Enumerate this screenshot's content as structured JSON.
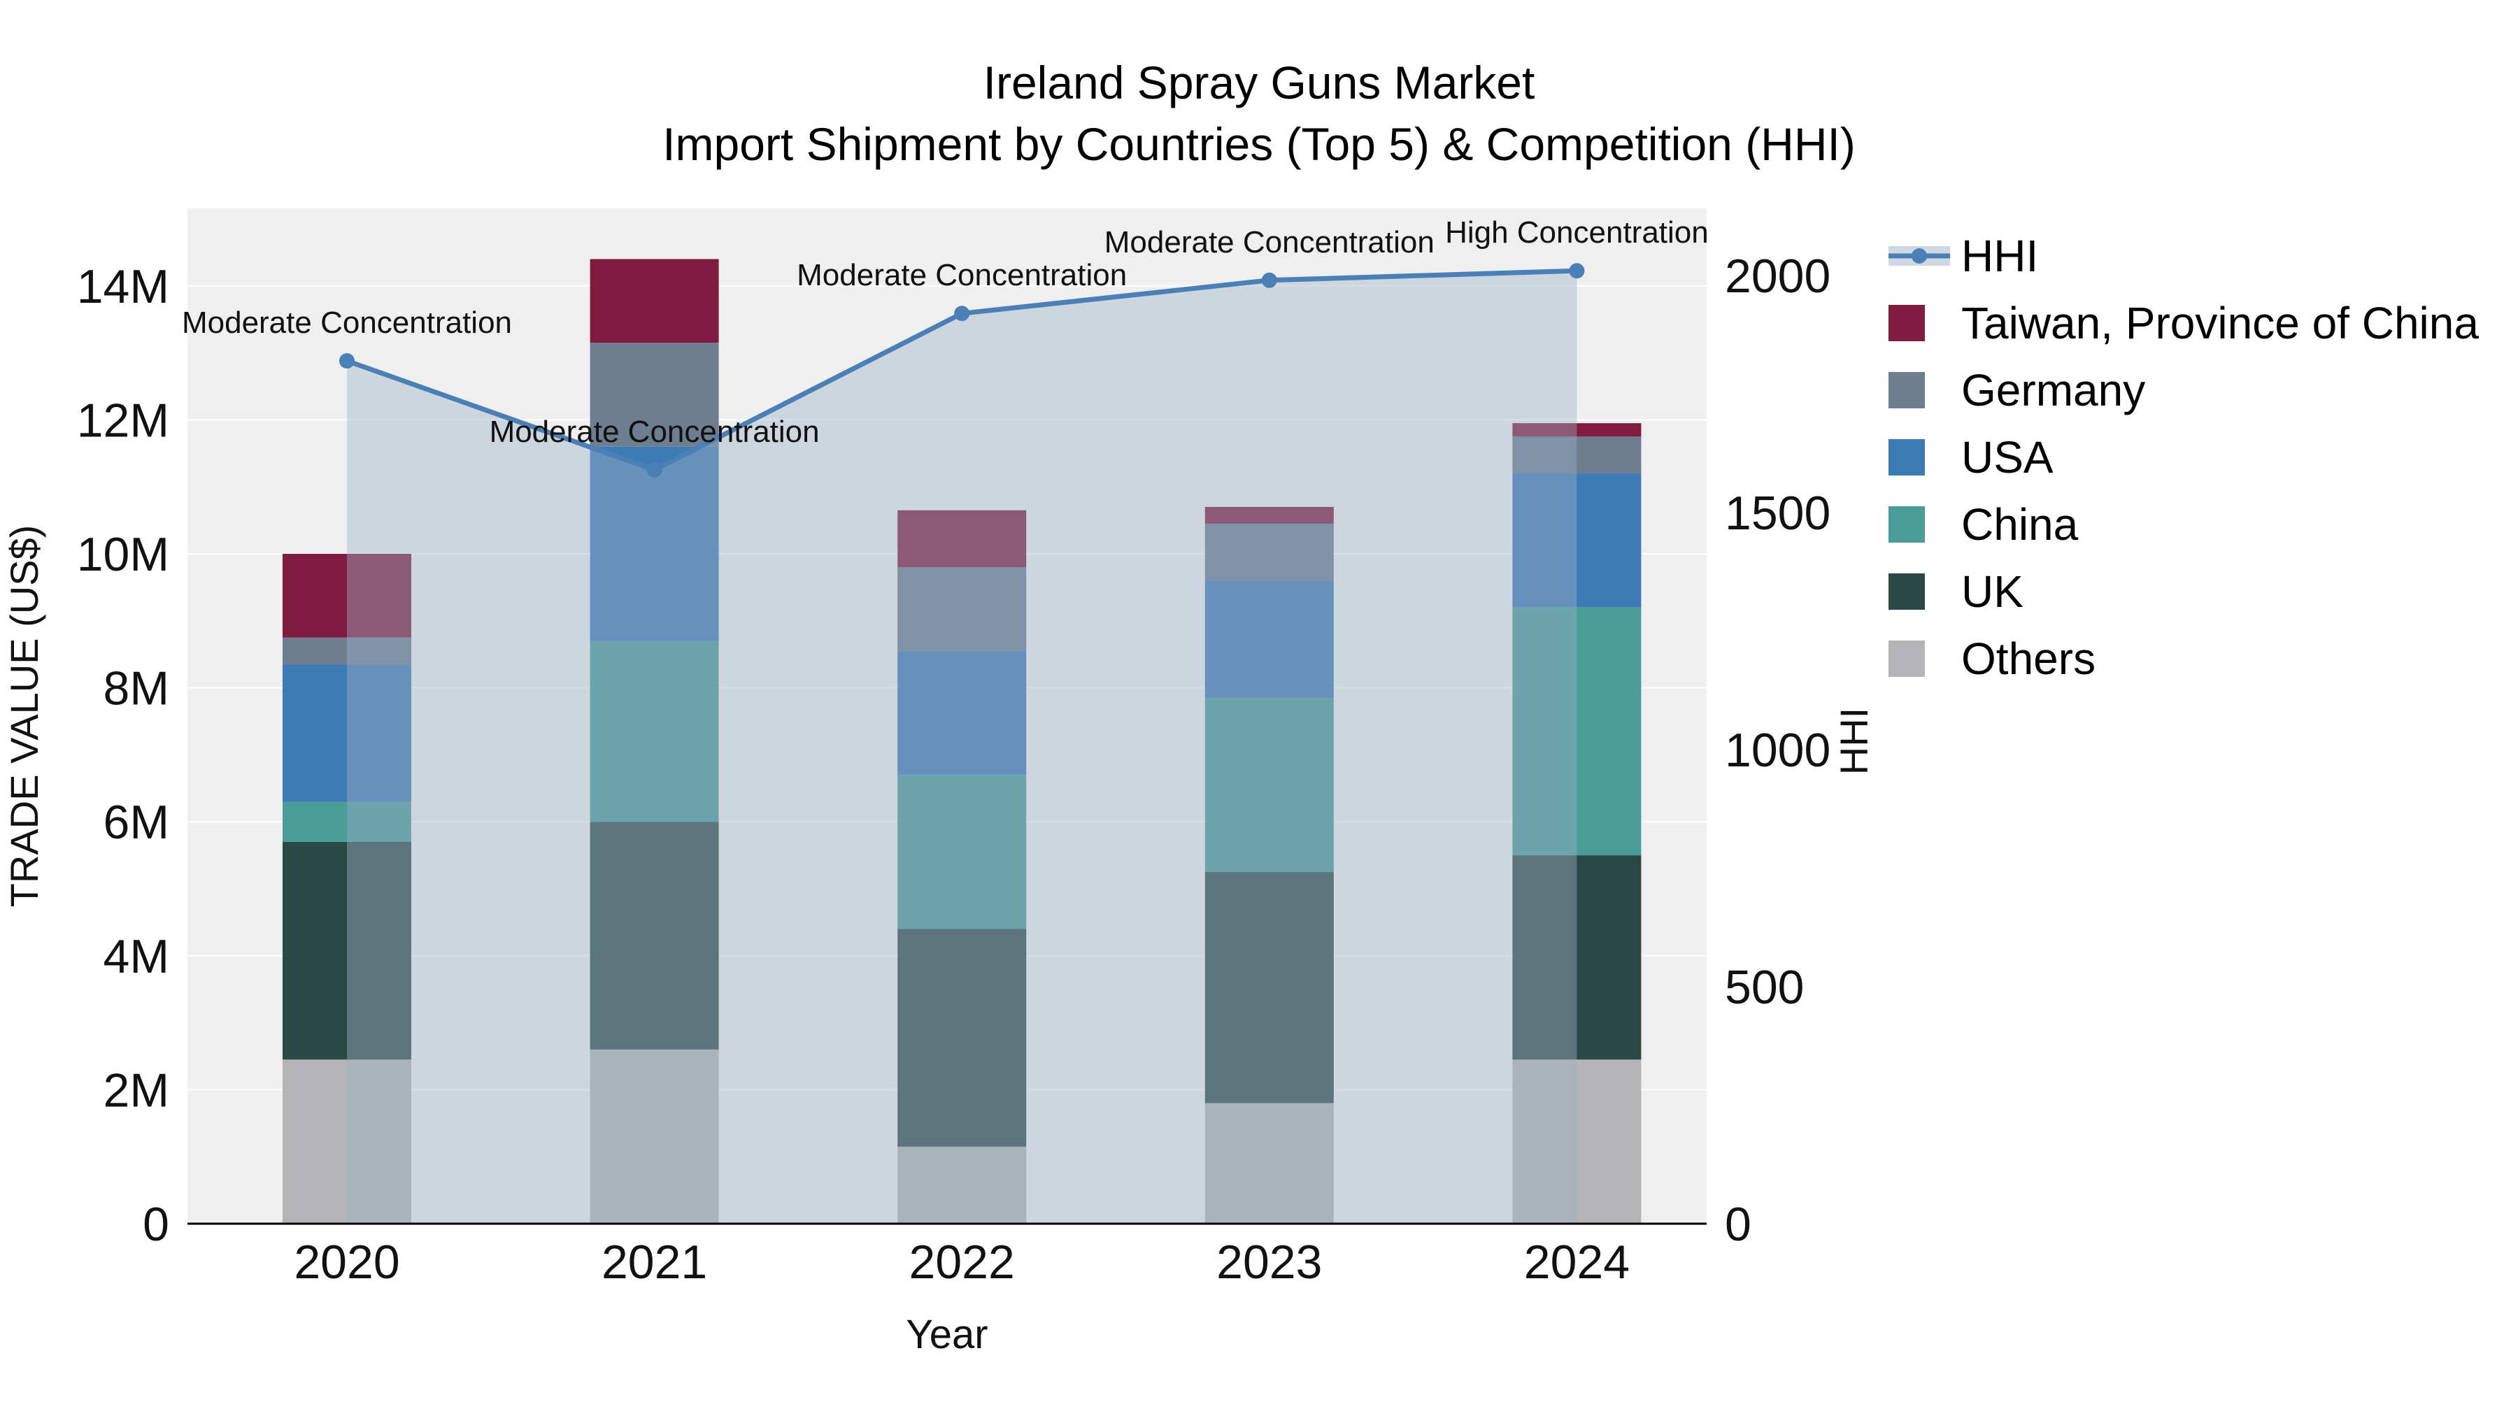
{
  "title": {
    "line1": "Ireland Spray Guns Market",
    "line2": "Import Shipment by Countries (Top 5) & Competition (HHI)"
  },
  "axes": {
    "y_left_label": "TRADE VALUE (US$)",
    "y_right_label": "HHI",
    "x_label": "Year",
    "y_left_tick_labels": [
      "0",
      "2M",
      "4M",
      "6M",
      "8M",
      "10M",
      "12M",
      "14M"
    ],
    "y_right_tick_labels": [
      "0",
      "500",
      "1000",
      "1500",
      "2000"
    ]
  },
  "legend": {
    "items": [
      {
        "label": "HHI",
        "type": "line",
        "color": "#4a80b5",
        "fill": "#9eb1c6"
      },
      {
        "label": "Taiwan, Province of China",
        "type": "swatch",
        "color": "#7d1c3e"
      },
      {
        "label": "Germany",
        "type": "swatch",
        "color": "#6c7e90"
      },
      {
        "label": "USA",
        "type": "swatch",
        "color": "#3d7ab6"
      },
      {
        "label": "China",
        "type": "swatch",
        "color": "#4a9c99"
      },
      {
        "label": "UK",
        "type": "swatch",
        "color": "#2c4a45"
      },
      {
        "label": "Others",
        "type": "swatch",
        "color": "#b4b4b6"
      }
    ]
  },
  "chart_data": {
    "type": "bar",
    "subtype": "stacked-bars-with-line-overlay",
    "title": "Ireland Spray Guns Market Import Shipment by Countries (Top 5) & Competition (HHI)",
    "x": [
      "2020",
      "2021",
      "2022",
      "2023",
      "2024"
    ],
    "x_label": "Year",
    "bar_value_unit": "US$",
    "series": [
      {
        "name": "Others",
        "color": "#b4b4b6",
        "values": [
          2450000,
          2600000,
          1150000,
          1800000,
          2450000
        ]
      },
      {
        "name": "UK",
        "color": "#2c4a45",
        "values": [
          3250000,
          3400000,
          3250000,
          3450000,
          3050000
        ]
      },
      {
        "name": "China",
        "color": "#4a9c99",
        "values": [
          600000,
          2700000,
          2300000,
          2600000,
          3700000
        ]
      },
      {
        "name": "USA",
        "color": "#3d7ab6",
        "values": [
          2050000,
          2900000,
          1850000,
          1750000,
          2000000
        ]
      },
      {
        "name": "Germany",
        "color": "#6c7e90",
        "values": [
          400000,
          1550000,
          1250000,
          850000,
          550000
        ]
      },
      {
        "name": "Taiwan, Province of China",
        "color": "#7d1c3e",
        "values": [
          1250000,
          1250000,
          850000,
          250000,
          200000
        ]
      }
    ],
    "line": {
      "name": "HHI",
      "axis": "right",
      "color": "#4a80b5",
      "area_fill": "#9eb1c6",
      "area_opacity": 0.42,
      "values": [
        1820,
        1590,
        1920,
        1990,
        2010
      ]
    },
    "annotations": [
      {
        "x": "2020",
        "text": "Moderate Concentration"
      },
      {
        "x": "2021",
        "text": "Moderate Concentration"
      },
      {
        "x": "2022",
        "text": "Moderate Concentration"
      },
      {
        "x": "2023",
        "text": "Moderate Concentration"
      },
      {
        "x": "2024",
        "text": "High Concentration"
      }
    ],
    "y_left": {
      "label": "TRADE VALUE (US$)",
      "ticks": [
        0,
        2000000,
        4000000,
        6000000,
        8000000,
        10000000,
        12000000,
        14000000
      ],
      "max": 15150000
    },
    "y_right": {
      "label": "HHI",
      "ticks": [
        0,
        500,
        1000,
        1500,
        2000
      ],
      "max": 2140
    },
    "plot_bg": "#efefef",
    "grid_color": "#ffffff"
  }
}
